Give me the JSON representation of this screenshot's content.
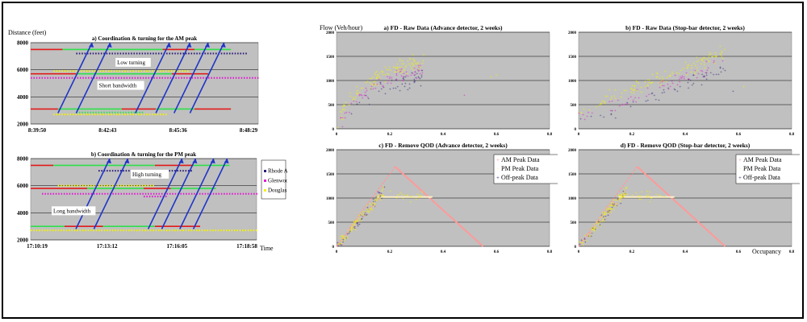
{
  "page": {
    "left_ylabel": "Distance (feet)",
    "left_xlabel": "Time",
    "right_ylabel": "Flow (Veh/hour)",
    "right_xlabel": "Occupancy"
  },
  "colors": {
    "plot_bg": "#c0c0c0",
    "grid": "#000000",
    "blue": "#1f35c8",
    "red": "#e21b1b",
    "green": "#2ee04a",
    "magenta": "#e01ad2",
    "yellow": "#f4f400",
    "navy": "#2b1c7a",
    "pink": "#ff9a9a",
    "beige": "#fff2c8"
  },
  "chart_data": [
    {
      "type": "line",
      "title": "a) Coordination & turning for the AM peak",
      "ylabel": "Distance (feet)",
      "ylim": [
        2000,
        8000
      ],
      "yticks": [
        2000,
        4000,
        6000,
        8000
      ],
      "xticks": [
        "8:39:50",
        "8:42:43",
        "8:45:36",
        "8:48:29"
      ],
      "legend": [
        "Rhode Ave",
        "Glenwood Ave",
        "Douglas Dr."
      ],
      "annotations": [
        "Low turning",
        "Short bandwidth"
      ]
    },
    {
      "type": "line",
      "title": "b) Coordination & turning for the PM peak",
      "ylim": [
        2000,
        8000
      ],
      "yticks": [
        2000,
        4000,
        6000,
        8000
      ],
      "xticks": [
        "17:10:19",
        "17:13:12",
        "17:16:05",
        "17:18:58"
      ],
      "xlabel": "Time",
      "legend": [
        "Rhode Ave",
        "Glenwood Ave",
        "Douglas Dr."
      ],
      "annotations": [
        "High turning",
        "Long bandwidth"
      ]
    },
    {
      "type": "scatter",
      "title": "a) FD - Raw Data (Advance detector, 2 weeks)",
      "ylabel": "Flow (Veh/hour)",
      "xlim": [
        0,
        0.8
      ],
      "ylim": [
        0,
        2000
      ],
      "xticks": [
        "0",
        "0.2",
        "0.4",
        "0.6",
        "0.8"
      ],
      "yticks": [
        "0",
        "500",
        "1000",
        "1500",
        "2000"
      ]
    },
    {
      "type": "scatter",
      "title": "b) FD - Raw Data (Stop-bar detector, 2 weeks)",
      "xlim": [
        0,
        0.8
      ],
      "ylim": [
        0,
        2000
      ],
      "xticks": [
        "0",
        "0.2",
        "0.4",
        "0.6",
        "0.8"
      ],
      "yticks": [
        "0",
        "500",
        "1000",
        "1500",
        "2000"
      ]
    },
    {
      "type": "scatter",
      "title": "c) FD - Remove QOD (Advance detector, 2 weeks)",
      "xlim": [
        0,
        0.8
      ],
      "ylim": [
        0,
        2000
      ],
      "xticks": [
        "0",
        "0.2",
        "0.4",
        "0.6",
        "0.8"
      ],
      "yticks": [
        "0",
        "500",
        "1000",
        "1500",
        "2000"
      ],
      "legend": [
        "AM Peak Data",
        "PM Peak Data",
        "Off-peak Data"
      ]
    },
    {
      "type": "scatter",
      "title": "d) FD - Remove QOD (Stop-bar detector, 2 weeks)",
      "xlabel": "Occupancy",
      "xlim": [
        0,
        0.8
      ],
      "ylim": [
        0,
        2000
      ],
      "xticks": [
        "0",
        "0.2",
        "0.4",
        "0.6",
        "0.8"
      ],
      "yticks": [
        "0",
        "500",
        "1000",
        "1500",
        "2000"
      ],
      "legend": [
        "AM Peak Data",
        "PM Peak Data",
        "Off-peak Data"
      ]
    }
  ]
}
